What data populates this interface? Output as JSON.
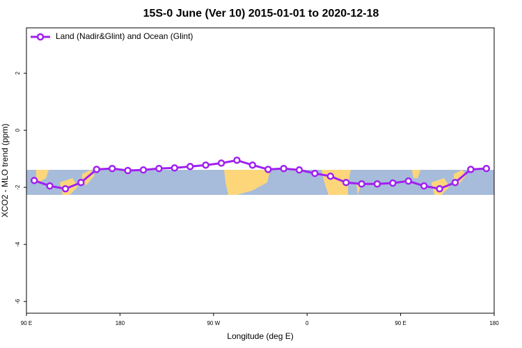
{
  "chart_data": {
    "type": "line",
    "title": "15S-0 June (Ver 10)   2015-01-01 to 2020-12-18",
    "xlabel": "Longitude (deg E)",
    "ylabel": "XCO2 - MLO trend (ppm)",
    "x": [
      97.5,
      112.5,
      127.5,
      142.5,
      157.5,
      172.5,
      187.5,
      202.5,
      217.5,
      232.5,
      247.5,
      262.5,
      277.5,
      292.5,
      307.5,
      322.5,
      337.5,
      352.5,
      367.5,
      382.5,
      397.5,
      412.5,
      427.5,
      442.5,
      457.5,
      472.5,
      487.5,
      502.5,
      517.5,
      532.5
    ],
    "series": [
      {
        "name": "Land (Nadir&Glint) and Ocean (Glint)",
        "color": "#a020f0",
        "values": [
          -1.76,
          -1.95,
          -2.05,
          -1.83,
          -1.37,
          -1.34,
          -1.41,
          -1.39,
          -1.34,
          -1.32,
          -1.27,
          -1.22,
          -1.15,
          -1.05,
          -1.22,
          -1.37,
          -1.34,
          -1.39,
          -1.51,
          -1.61,
          -1.83,
          -1.88,
          -1.88,
          -1.85,
          -1.78,
          -1.95,
          -2.05,
          -1.83,
          -1.37,
          -1.34
        ]
      }
    ],
    "xlim": [
      90,
      540
    ],
    "xticks": [
      {
        "value": 90,
        "label": "90 E"
      },
      {
        "value": 180,
        "label": "180"
      },
      {
        "value": 270,
        "label": "90 W"
      },
      {
        "value": 360,
        "label": "0"
      },
      {
        "value": 450,
        "label": "90 E"
      },
      {
        "value": 540,
        "label": "180"
      }
    ],
    "ylim": [
      -6.41,
      3.59
    ],
    "yticks": [
      2,
      0,
      -2,
      -4,
      -6
    ],
    "legend": "top-left"
  }
}
